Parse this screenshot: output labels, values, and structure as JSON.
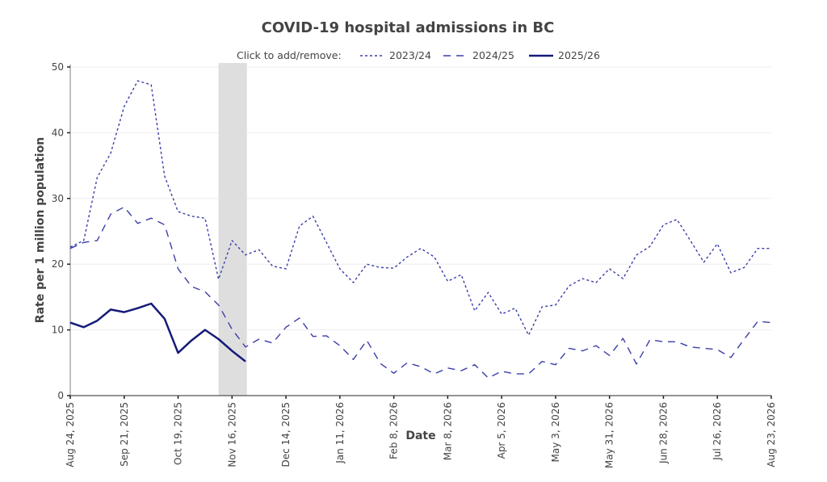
{
  "chart_data": {
    "type": "line",
    "title": "COVID-19 hospital admissions in BC",
    "xlabel": "Date",
    "ylabel": "Rate per 1 million population",
    "ylim": [
      0,
      50
    ],
    "yticks": [
      0,
      10,
      20,
      30,
      40,
      50
    ],
    "grid": true,
    "x_start": "Aug 24, 2025",
    "x_end": "Aug 23, 2026",
    "x_unit": "weeks",
    "x_range_weeks": [
      0,
      52
    ],
    "xticks": [
      {
        "week": 0,
        "label": "Aug 24, 2025"
      },
      {
        "week": 4,
        "label": "Sep 21, 2025"
      },
      {
        "week": 8,
        "label": "Oct 19, 2025"
      },
      {
        "week": 12,
        "label": "Nov 16, 2025"
      },
      {
        "week": 16,
        "label": "Dec 14, 2025"
      },
      {
        "week": 20,
        "label": "Jan 11, 2026"
      },
      {
        "week": 24,
        "label": "Feb 8, 2026"
      },
      {
        "week": 28,
        "label": "Mar 8, 2026"
      },
      {
        "week": 32,
        "label": "Apr 5, 2026"
      },
      {
        "week": 36,
        "label": "May 3, 2026"
      },
      {
        "week": 40,
        "label": "May 31, 2026"
      },
      {
        "week": 44,
        "label": "Jun 28, 2026"
      },
      {
        "week": 48,
        "label": "Jul 26, 2026"
      },
      {
        "week": 52,
        "label": "Aug 23, 2026"
      }
    ],
    "highlight_band_weeks": [
      11,
      13.1
    ],
    "legend": {
      "prompt": "Click to add/remove:",
      "placement": "top-right"
    },
    "series": [
      {
        "name": "2023/24",
        "style": "dotted",
        "color": "#3a3fa8",
        "values": [
          22.6,
          23.6,
          33.2,
          36.9,
          44.0,
          47.9,
          47.3,
          33.4,
          28.0,
          27.3,
          27.0,
          17.7,
          23.6,
          21.4,
          22.2,
          19.7,
          19.3,
          25.8,
          27.3,
          23.3,
          19.3,
          17.2,
          20.0,
          19.5,
          19.4,
          21.1,
          22.4,
          21.1,
          17.4,
          18.4,
          12.9,
          15.7,
          12.4,
          13.3,
          9.2,
          13.5,
          13.8,
          16.7,
          17.8,
          17.2,
          19.3,
          17.8,
          21.4,
          22.7,
          26.0,
          26.8,
          23.6,
          20.3,
          23.1,
          18.7,
          19.5,
          22.4,
          22.4
        ]
      },
      {
        "name": "2024/25",
        "style": "dashed",
        "color": "#3a3fa8",
        "values": [
          22.4,
          23.3,
          23.6,
          27.6,
          28.7,
          26.2,
          27.0,
          26.0,
          19.3,
          16.6,
          15.8,
          13.8,
          10.1,
          7.4,
          8.6,
          8.0,
          10.4,
          11.8,
          9.0,
          9.1,
          7.6,
          5.5,
          8.4,
          4.9,
          3.4,
          5.0,
          4.4,
          3.3,
          4.2,
          3.8,
          4.7,
          2.7,
          3.7,
          3.3,
          3.3,
          5.2,
          4.7,
          7.2,
          6.8,
          7.6,
          6.1,
          8.7,
          4.8,
          8.5,
          8.2,
          8.2,
          7.4,
          7.2,
          7.0,
          5.8,
          8.6,
          11.3,
          11.1
        ]
      },
      {
        "name": "2025/26",
        "style": "solid",
        "color": "#141a7a",
        "values": [
          11.1,
          10.4,
          11.4,
          13.1,
          12.7,
          13.3,
          14.0,
          11.7,
          6.5,
          8.4,
          10.0,
          8.6,
          6.8,
          5.2
        ]
      }
    ]
  }
}
